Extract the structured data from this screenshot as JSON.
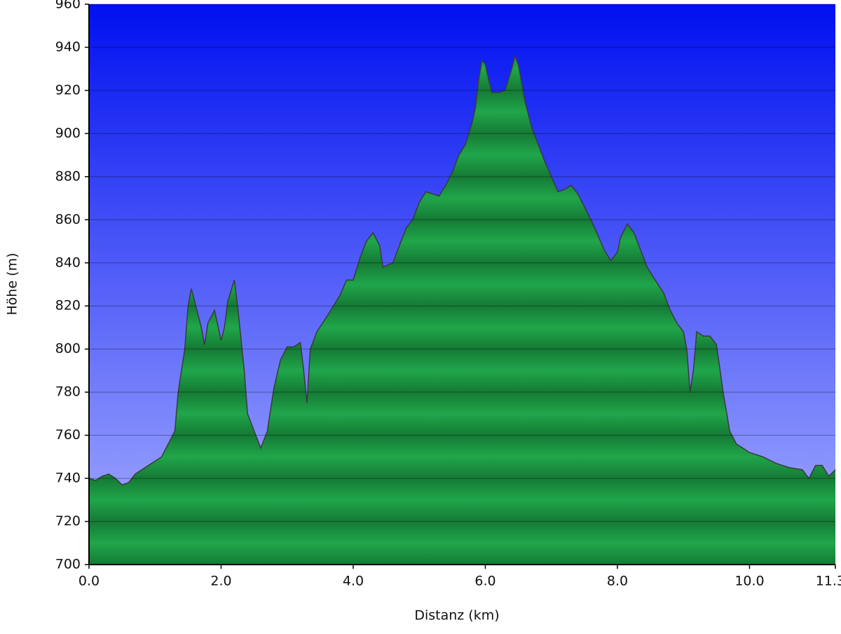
{
  "chart_data": {
    "type": "area",
    "x_label": "Distanz   (km)",
    "y_label": "Höhe (m)",
    "xlim": [
      0,
      11.3
    ],
    "ylim": [
      700,
      960
    ],
    "xticks": [
      {
        "value": 0,
        "label": "0.0"
      },
      {
        "value": 2,
        "label": "2.0"
      },
      {
        "value": 4,
        "label": "4.0"
      },
      {
        "value": 6,
        "label": "6.0"
      },
      {
        "value": 8,
        "label": "8.0"
      },
      {
        "value": 10,
        "label": "10.0"
      },
      {
        "value": 11.3,
        "label": "11.3"
      }
    ],
    "yticks": [
      700,
      720,
      740,
      760,
      780,
      800,
      820,
      840,
      860,
      880,
      900,
      920,
      940,
      960
    ],
    "grid": true,
    "color": "#20a64a",
    "line_color": "#3a3a3a",
    "x": [
      0,
      0.1,
      0.2,
      0.3,
      0.4,
      0.5,
      0.6,
      0.7,
      0.8,
      0.9,
      1.0,
      1.1,
      1.2,
      1.3,
      1.35,
      1.45,
      1.5,
      1.55,
      1.6,
      1.7,
      1.75,
      1.8,
      1.9,
      2.0,
      2.05,
      2.1,
      2.2,
      2.25,
      2.35,
      2.4,
      2.5,
      2.6,
      2.7,
      2.8,
      2.9,
      3.0,
      3.1,
      3.2,
      3.25,
      3.3,
      3.35,
      3.45,
      3.6,
      3.8,
      3.9,
      4.0,
      4.1,
      4.2,
      4.3,
      4.4,
      4.45,
      4.6,
      4.7,
      4.8,
      4.9,
      5.0,
      5.1,
      5.2,
      5.3,
      5.4,
      5.5,
      5.6,
      5.7,
      5.8,
      5.85,
      5.9,
      5.95,
      6.0,
      6.05,
      6.1,
      6.2,
      6.3,
      6.4,
      6.45,
      6.5,
      6.6,
      6.7,
      6.8,
      6.9,
      7.0,
      7.1,
      7.2,
      7.3,
      7.4,
      7.5,
      7.6,
      7.7,
      7.8,
      7.9,
      8.0,
      8.05,
      8.15,
      8.25,
      8.35,
      8.45,
      8.55,
      8.7,
      8.8,
      8.9,
      9.0,
      9.05,
      9.1,
      9.15,
      9.2,
      9.3,
      9.4,
      9.5,
      9.6,
      9.7,
      9.8,
      9.9,
      10.0,
      10.2,
      10.4,
      10.6,
      10.8,
      10.9,
      11.0,
      11.1,
      11.2,
      11.3
    ],
    "values": [
      740,
      739,
      741,
      742,
      740,
      737,
      738,
      742,
      744,
      746,
      748,
      750,
      756,
      762,
      780,
      800,
      820,
      828,
      822,
      810,
      802,
      812,
      818,
      804,
      810,
      822,
      832,
      820,
      790,
      770,
      762,
      754,
      762,
      782,
      795,
      801,
      801,
      803,
      790,
      775,
      800,
      808,
      815,
      825,
      832,
      832,
      842,
      850,
      854,
      848,
      838,
      840,
      848,
      856,
      860,
      868,
      873,
      872,
      871,
      876,
      882,
      890,
      895,
      905,
      912,
      925,
      934,
      932,
      925,
      919,
      919,
      920,
      930,
      936,
      932,
      915,
      903,
      895,
      887,
      880,
      873,
      874,
      876,
      872,
      866,
      860,
      853,
      846,
      841,
      845,
      852,
      858,
      854,
      846,
      838,
      833,
      826,
      818,
      812,
      808,
      800,
      780,
      790,
      808,
      806,
      806,
      802,
      780,
      762,
      756,
      754,
      752,
      750,
      747,
      745,
      744,
      740,
      746,
      746,
      741,
      744
    ]
  }
}
